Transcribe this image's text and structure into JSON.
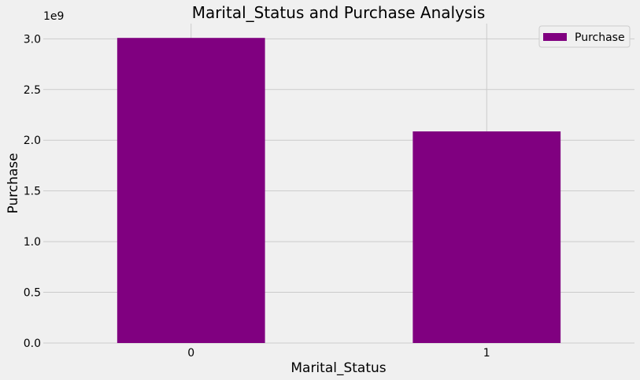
{
  "chart_data": {
    "type": "bar",
    "title": "Marital_Status and Purchase Analysis",
    "xlabel": "Marital_Status",
    "ylabel": "Purchase",
    "categories": [
      "0",
      "1"
    ],
    "series": [
      {
        "name": "Purchase",
        "values": [
          3008927447,
          2086885295
        ]
      }
    ],
    "ylim": [
      0,
      3150000000
    ],
    "yticks": [
      0.0,
      0.5,
      1.0,
      1.5,
      2.0,
      2.5,
      3.0
    ],
    "ytick_labels": [
      "0.0",
      "0.5",
      "1.0",
      "1.5",
      "2.0",
      "2.5",
      "3.0"
    ],
    "y_multiplier": "1e9",
    "legend_position": "top-right",
    "grid": true,
    "colors": {
      "bar": "#800080",
      "background": "#f0f0f0",
      "grid": "#cbcbcb"
    }
  }
}
